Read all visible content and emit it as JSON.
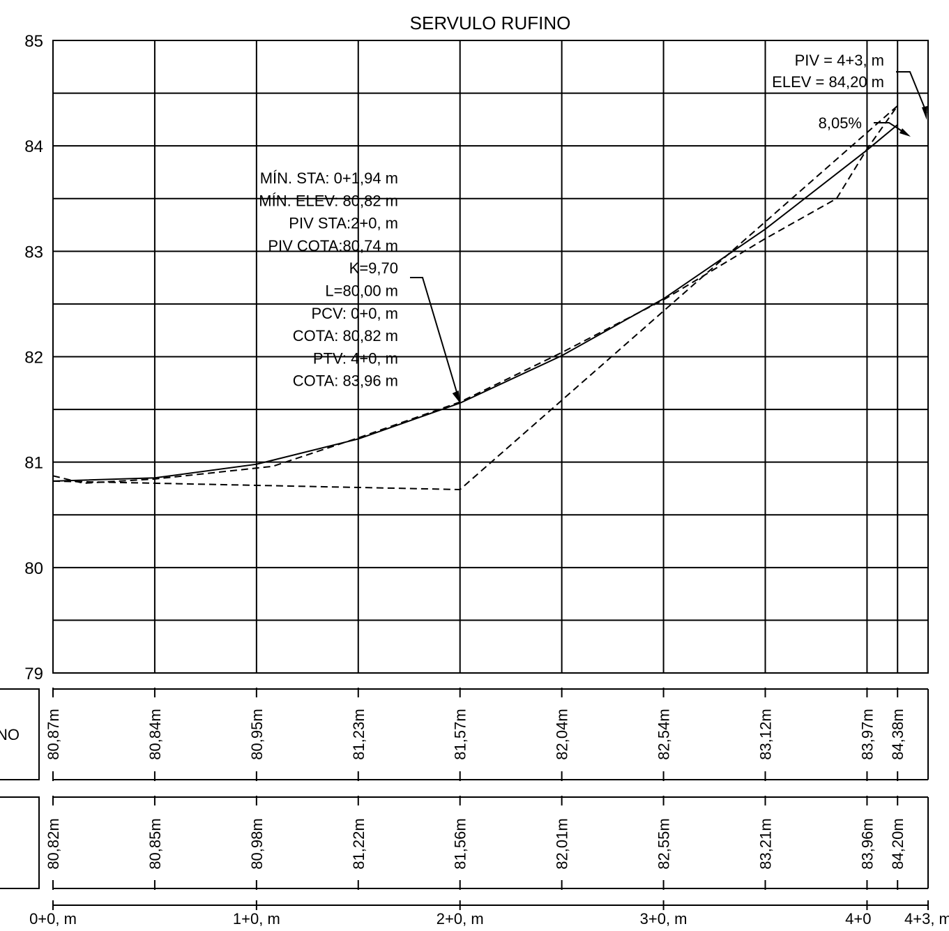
{
  "title": "SERVULO RUFINO",
  "colors": {
    "line": "#000000",
    "background": "#ffffff"
  },
  "chart_data": {
    "type": "line",
    "title": "SERVULO RUFINO",
    "x_range": [
      0,
      4.3
    ],
    "y_range": [
      79,
      85
    ],
    "y_ticks": [
      "79",
      "80",
      "81",
      "82",
      "83",
      "84",
      "85"
    ],
    "x_grid": [
      0,
      0.5,
      1,
      1.5,
      2,
      2.5,
      3,
      3.5,
      4,
      4.15,
      4.3
    ],
    "y_grid": [
      79,
      79.5,
      80,
      80.5,
      81,
      81.5,
      82,
      82.5,
      83,
      83.5,
      84,
      84.5,
      85
    ],
    "series": [
      {
        "style": "solid",
        "points": [
          [
            0,
            80.82
          ],
          [
            0.5,
            80.85
          ],
          [
            1,
            80.98
          ],
          [
            1.5,
            81.22
          ],
          [
            2,
            81.56
          ],
          [
            2.5,
            82.01
          ],
          [
            3,
            82.55
          ],
          [
            3.5,
            83.21
          ],
          [
            4,
            83.96
          ],
          [
            4.15,
            84.2
          ]
        ]
      },
      {
        "style": "dashed",
        "points": [
          [
            0,
            80.87
          ],
          [
            0.15,
            80.8
          ],
          [
            0.5,
            80.84
          ],
          [
            1.08,
            80.96
          ],
          [
            1.5,
            81.23
          ],
          [
            2,
            81.57
          ],
          [
            2.5,
            82.04
          ],
          [
            3,
            82.54
          ],
          [
            3.5,
            83.12
          ],
          [
            3.85,
            83.5
          ],
          [
            4,
            83.97
          ],
          [
            4.15,
            84.38
          ]
        ]
      },
      {
        "style": "dashed",
        "points": [
          [
            0,
            80.82
          ],
          [
            2,
            80.74
          ],
          [
            4.15,
            84.38
          ]
        ]
      }
    ],
    "annotations": {
      "curve_data": [
        "MÍN. STA: 0+1,94 m",
        "MÍN. ELEV: 80,82 m",
        "PIV STA:2+0, m",
        "PIV COTA:80,74 m",
        "K=9,70",
        "L=80,00 m",
        "PCV: 0+0, m",
        "COTA: 80,82 m",
        "PTV: 4+0, m",
        "COTA: 83,96 m"
      ],
      "piv_end": [
        "PIV = 4+3, m",
        "ELEV =  84,20 m"
      ],
      "slope": "8,05%"
    },
    "band_1": {
      "label": "NO",
      "x": [
        0,
        0.5,
        1,
        1.5,
        2,
        2.5,
        3,
        3.5,
        4,
        4.15
      ],
      "values": [
        "80,87m",
        "80,84m",
        "80,95m",
        "81,23m",
        "81,57m",
        "82,04m",
        "82,54m",
        "83,12m",
        "83,97m",
        "84,38m"
      ]
    },
    "band_2": {
      "x": [
        0,
        0.5,
        1,
        1.5,
        2,
        2.5,
        3,
        3.5,
        4,
        4.15
      ],
      "values": [
        "80,82m",
        "80,85m",
        "80,98m",
        "81,22m",
        "81,56m",
        "82,01m",
        "82,55m",
        "83,21m",
        "83,96m",
        "84,20m"
      ]
    },
    "stations": {
      "x": [
        0,
        1,
        2,
        3,
        4,
        4.3
      ],
      "labels": [
        "0+0, m",
        "1+0, m",
        "2+0, m",
        "3+0, m",
        "4+0",
        "4+3, m"
      ]
    }
  }
}
